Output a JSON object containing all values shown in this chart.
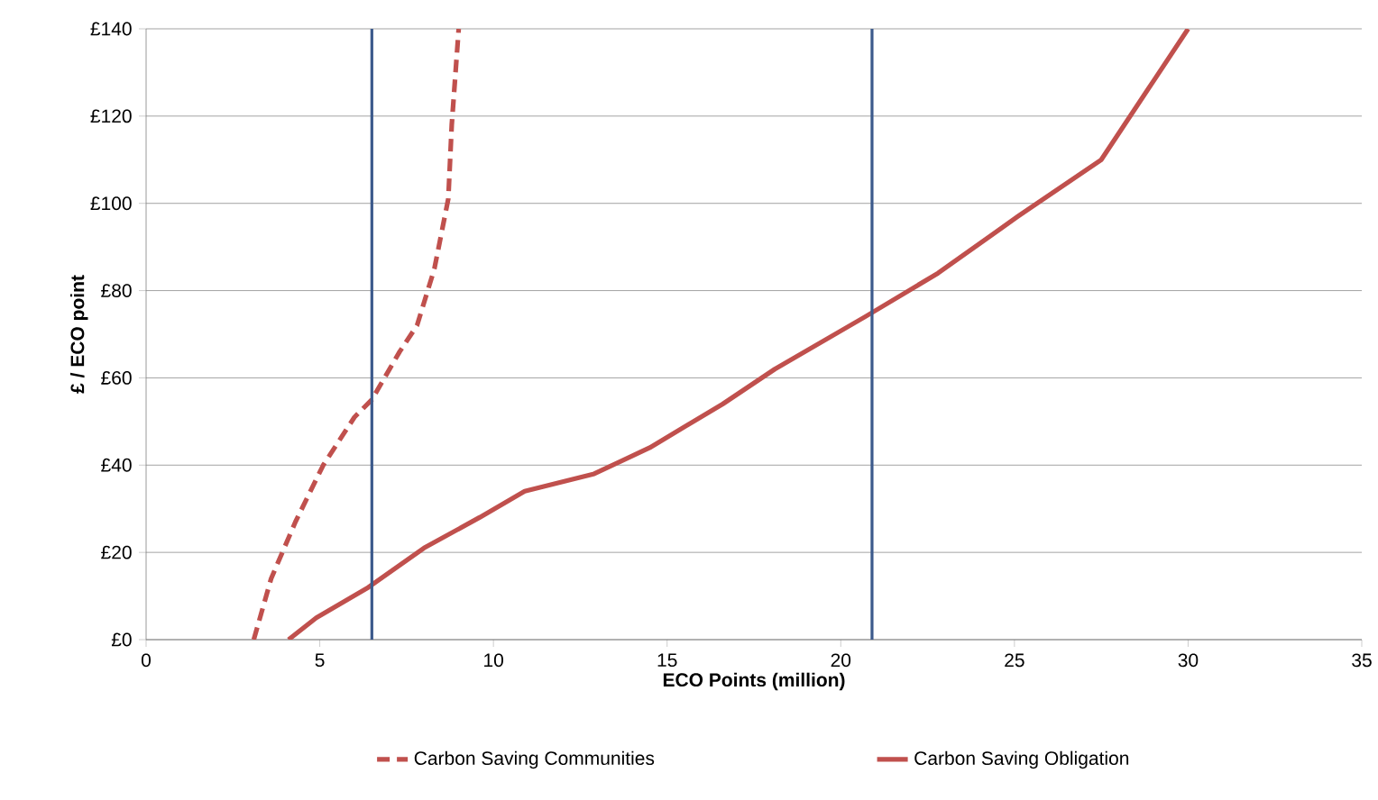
{
  "chart_data": {
    "type": "line",
    "xlabel": "ECO Points (million)",
    "ylabel": "£ / ECO point",
    "xlim": [
      0,
      35
    ],
    "xticks": [
      0,
      5,
      10,
      15,
      20,
      25,
      30,
      35
    ],
    "ylim": [
      0,
      140
    ],
    "yticks": [
      {
        "value": 0,
        "label": "£0"
      },
      {
        "value": 20,
        "label": "£20"
      },
      {
        "value": 40,
        "label": "£40"
      },
      {
        "value": 60,
        "label": "£60"
      },
      {
        "value": 80,
        "label": "£80"
      },
      {
        "value": 100,
        "label": "£100"
      },
      {
        "value": 120,
        "label": "£120"
      },
      {
        "value": 140,
        "label": "£140"
      }
    ],
    "grid": "y",
    "legend": "bottom",
    "marker": "none",
    "series": [
      {
        "name": "Carbon Saving Communities",
        "color": "#c0504d",
        "line_style": "dashed",
        "x": [
          3.1,
          3.6,
          4.3,
          5.1,
          6.0,
          6.5,
          7.3,
          7.8,
          8.3,
          8.7,
          8.8,
          9.0
        ],
        "values": [
          0,
          14,
          27,
          40,
          51,
          55,
          66,
          72,
          85,
          101,
          118,
          140
        ]
      },
      {
        "name": "Carbon Saving Obligation",
        "color": "#c0504d",
        "line_style": "solid",
        "x": [
          4.1,
          4.9,
          6.4,
          8.0,
          9.6,
          10.9,
          12.9,
          14.5,
          16.6,
          18.1,
          20.7,
          22.8,
          25.1,
          27.5,
          29.0,
          30.0
        ],
        "values": [
          0,
          5,
          12,
          21,
          28,
          34,
          38,
          44,
          54,
          62,
          74,
          84,
          97,
          110,
          128,
          140
        ]
      }
    ],
    "ref_lines": [
      {
        "axis": "x",
        "value": 6.5,
        "color": "#3c5a8c"
      },
      {
        "axis": "x",
        "value": 20.9,
        "color": "#3c5a8c"
      }
    ]
  }
}
